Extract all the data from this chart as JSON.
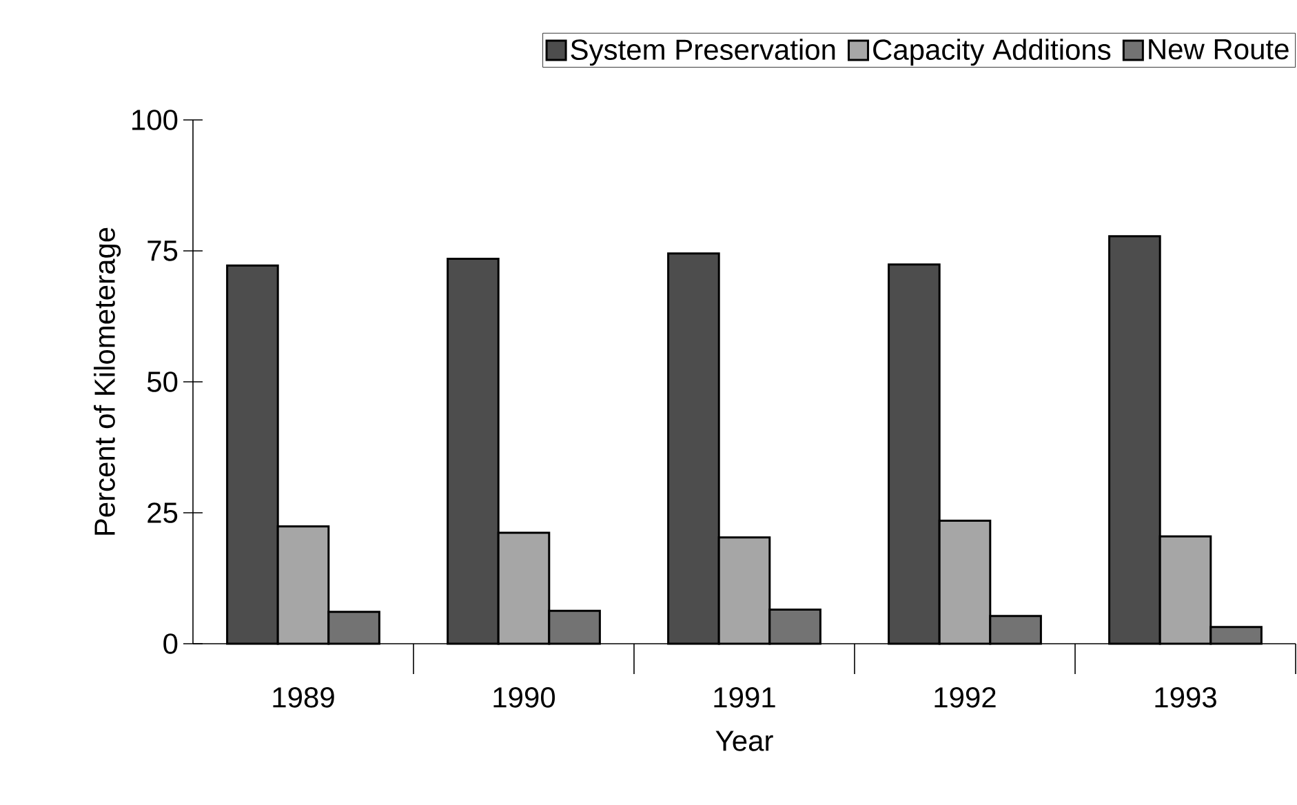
{
  "chart_data": {
    "type": "bar",
    "xlabel": "Year",
    "ylabel": "Percent of Kilometerage",
    "categories": [
      "1989",
      "1990",
      "1991",
      "1992",
      "1993"
    ],
    "series": [
      {
        "name": "System Preservation",
        "color": "#4d4d4d",
        "values": [
          72.2,
          73.5,
          74.5,
          72.4,
          77.8
        ]
      },
      {
        "name": "Capacity Additions",
        "color": "#a6a6a6",
        "values": [
          22.4,
          21.2,
          20.3,
          23.5,
          20.5
        ]
      },
      {
        "name": "New Route",
        "color": "#737373",
        "values": [
          6.1,
          6.3,
          6.5,
          5.3,
          3.2
        ]
      }
    ],
    "ylim": [
      0,
      100
    ],
    "yticks": [
      0,
      25,
      50,
      75,
      100
    ],
    "grid": false,
    "legend": "top right"
  }
}
